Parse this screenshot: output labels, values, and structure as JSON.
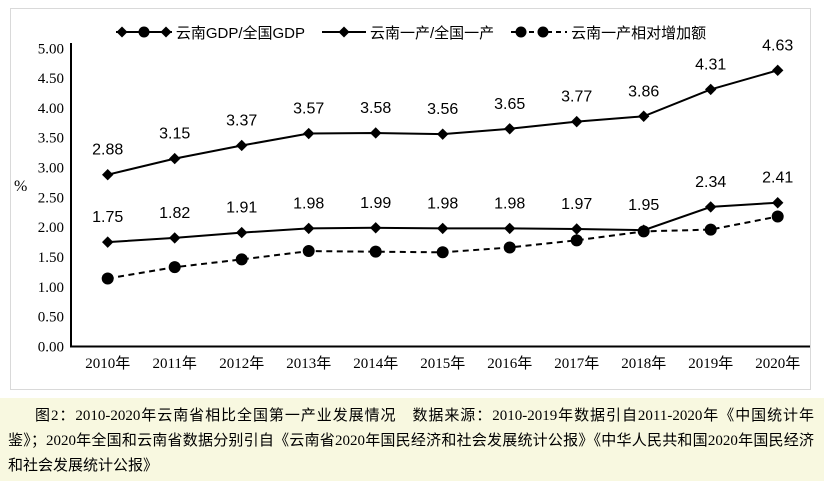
{
  "colors": {
    "series": "#000000",
    "frame_border": "#d9d9d9",
    "caption_bg": "#f8f8e0",
    "text": "#000000"
  },
  "caption": "图2：2010-2020年云南省相比全国第一产业发展情况　数据来源：2010-2019年数据引自2011-2020年《中国统计年鉴》；2020年全国和云南省数据分别引自《云南省2020年国民经济和社会发展统计公报》《中华人民共和国2020年国民经济和社会发展统计公报》",
  "chart_data": {
    "type": "line",
    "title": "",
    "xlabel": "",
    "ylabel": "%",
    "ylim": [
      0,
      5
    ],
    "ytick_step": 0.5,
    "yticks": [
      "5.00",
      "4.50",
      "4.00",
      "3.50",
      "3.00",
      "2.50",
      "2.00",
      "1.50",
      "1.00",
      "0.50",
      "0.00"
    ],
    "grid": false,
    "legend_position": "top",
    "categories": [
      "2010年",
      "2011年",
      "2012年",
      "2013年",
      "2014年",
      "2015年",
      "2016年",
      "2017年",
      "2018年",
      "2019年",
      "2020年"
    ],
    "series": [
      {
        "name": "云南GDP/全国GDP",
        "values": [
          2.88,
          3.15,
          3.37,
          3.57,
          3.58,
          3.56,
          3.65,
          3.77,
          3.86,
          4.31,
          4.63
        ],
        "marker": "diamond",
        "line": "solid",
        "data_labels": true
      },
      {
        "name": "云南一产/全国一产",
        "values": [
          1.75,
          1.82,
          1.91,
          1.98,
          1.99,
          1.98,
          1.98,
          1.97,
          1.95,
          2.34,
          2.41
        ],
        "marker": "diamond",
        "line": "solid",
        "data_labels": true
      },
      {
        "name": "云南一产相对增加额",
        "values": [
          1.14,
          1.33,
          1.46,
          1.6,
          1.59,
          1.58,
          1.66,
          1.78,
          1.93,
          1.96,
          2.18
        ],
        "marker": "circle",
        "line": "dashed",
        "data_labels": false
      }
    ]
  }
}
